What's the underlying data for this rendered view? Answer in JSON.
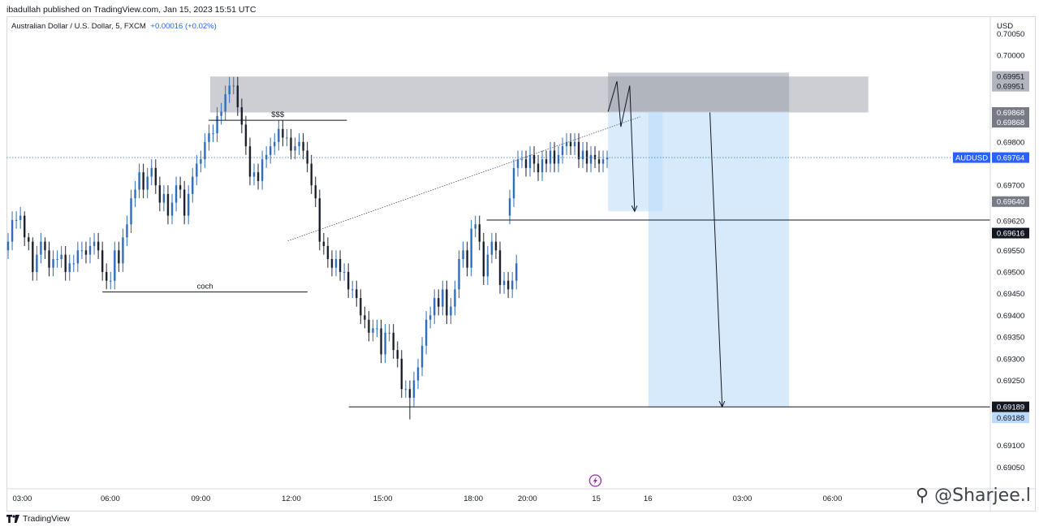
{
  "header": {
    "publish_line": "ibadullah published on TradingView.com, Jan 15, 2023 15:51 UTC"
  },
  "legend": {
    "symbol_line": "Australian Dollar / U.S. Dollar, 5, FXCM",
    "change": "+0.00016 (+0.02%)"
  },
  "footer": {
    "brand": "TradingView",
    "watermark": "@Sharjee.l"
  },
  "colors": {
    "up_candle": "#2f6dbd",
    "down_candle": "#1e222d",
    "zone_gray": "#b7b9c1",
    "zone_blue": "#bcdcfa",
    "price_line": "#4a86c8",
    "accent": "#2962ff"
  },
  "chart_data": {
    "type": "candlestick",
    "symbol": "AUDUSD",
    "currency": "USD",
    "ylim": [
      0.69,
      0.7009
    ],
    "x_ticks": [
      "03:00",
      "06:00",
      "09:00",
      "12:00",
      "15:00",
      "18:00",
      "20:00",
      "15",
      "16",
      "03:00",
      "06:00"
    ],
    "y_ticks": [
      "0.70050",
      "0.70000",
      "0.69850",
      "0.69800",
      "0.69700",
      "0.69550",
      "0.69500",
      "0.69450",
      "0.69400",
      "0.69350",
      "0.69300",
      "0.69250",
      "0.69100",
      "0.69050"
    ],
    "price_tags": [
      {
        "label": "0.69951",
        "value": 0.69951,
        "style": "gray"
      },
      {
        "label": "0.69951",
        "value": 0.69951,
        "style": "gray"
      },
      {
        "label": "0.69868",
        "value": 0.69868,
        "style": "dark-gray"
      },
      {
        "label": "0.69868",
        "value": 0.69868,
        "style": "dark-gray"
      },
      {
        "label": "0.69764",
        "value": 0.69764,
        "style": "blue",
        "symbol": "AUDUSD"
      },
      {
        "label": "0.69640",
        "value": 0.6964,
        "style": "dark-gray"
      },
      {
        "label": "0.69620",
        "value": 0.6962,
        "style": "light"
      },
      {
        "label": "0.69616",
        "value": 0.69616,
        "style": "black"
      },
      {
        "label": "0.69189",
        "value": 0.69189,
        "style": "black"
      },
      {
        "label": "0.69188",
        "value": 0.69188,
        "style": "light-blue"
      }
    ],
    "annotations": [
      {
        "text": "$$$",
        "type": "horizontal-line",
        "price": 0.6985,
        "x_start": 0.2055,
        "x_end": 0.346
      },
      {
        "text": "coch",
        "type": "horizontal-line",
        "price": 0.69454,
        "x_start": 0.0975,
        "x_end": 0.306
      }
    ],
    "levels": [
      {
        "price": 0.6962,
        "x_start": 0.488,
        "x_end": 1.0
      },
      {
        "price": 0.69189,
        "x_start": 0.348,
        "x_end": 1.0
      }
    ],
    "zones": [
      {
        "kind": "supply",
        "price_top": 0.69951,
        "price_bottom": 0.69868,
        "x_start": 0.207,
        "x_end": 0.876
      },
      {
        "kind": "position",
        "price_top": 0.6996,
        "price_bottom": 0.6987,
        "x_start": 0.6115,
        "x_end": 0.7955
      },
      {
        "kind": "target-1",
        "price_top": 0.69868,
        "price_bottom": 0.6964,
        "x_start": 0.6115,
        "x_end": 0.667
      },
      {
        "kind": "target-2",
        "price_top": 0.69868,
        "price_bottom": 0.69189,
        "x_start": 0.6525,
        "x_end": 0.7955
      }
    ],
    "trendline": {
      "p1": {
        "x": 0.286,
        "price": 0.69572
      },
      "p2": {
        "x": 0.644,
        "price": 0.69858
      }
    },
    "current_price": 0.69764,
    "candle_count": 125,
    "candles": {
      "o": [
        0.6955,
        0.6957,
        0.6962,
        0.6962,
        0.6963,
        0.6958,
        0.6957,
        0.695,
        0.6954,
        0.6957,
        0.6955,
        0.6951,
        0.6953,
        0.6953,
        0.6954,
        0.695,
        0.6952,
        0.6952,
        0.6955,
        0.6955,
        0.6954,
        0.6956,
        0.6957,
        0.6955,
        0.695,
        0.6948,
        0.6948,
        0.6955,
        0.6952,
        0.6958,
        0.6961,
        0.6967,
        0.6969,
        0.6973,
        0.6969,
        0.6972,
        0.6974,
        0.697,
        0.6966,
        0.6968,
        0.6963,
        0.6966,
        0.697,
        0.6969,
        0.6963,
        0.6968,
        0.6972,
        0.6975,
        0.6976,
        0.698,
        0.6982,
        0.6982,
        0.6986,
        0.6987,
        0.6991,
        0.6993,
        0.6993,
        0.6988,
        0.6984,
        0.6979,
        0.6972,
        0.6973,
        0.6971,
        0.6976,
        0.6977,
        0.6979,
        0.698,
        0.6983,
        0.6981,
        0.6981,
        0.6978,
        0.6979,
        0.698,
        0.6978,
        0.6975,
        0.697,
        0.6967,
        0.6957,
        0.6956,
        0.6953,
        0.6951,
        0.6953,
        0.695,
        0.695,
        0.6946,
        0.6946,
        0.6944,
        0.694,
        0.6939,
        0.6936,
        0.6937,
        0.6937,
        0.6931,
        0.6936,
        0.6936,
        0.6932,
        0.693,
        0.6923,
        0.6923,
        0.6921,
        0.6925,
        0.6928,
        0.6933,
        0.6939,
        0.694,
        0.6944,
        0.6942,
        0.6946,
        0.694,
        0.6942,
        0.6946,
        0.6953,
        0.6955,
        0.6951,
        0.696,
        0.6961,
        0.6957,
        0.6949,
        0.6954,
        0.6957,
        0.6955,
        0.6947,
        0.6948,
        0.6946,
        0.6948
      ],
      "c": [
        0.6957,
        0.6962,
        0.6962,
        0.6963,
        0.6958,
        0.6957,
        0.695,
        0.6954,
        0.6957,
        0.6955,
        0.6951,
        0.6953,
        0.6953,
        0.6954,
        0.695,
        0.6952,
        0.6952,
        0.6955,
        0.6955,
        0.6954,
        0.6956,
        0.6957,
        0.6955,
        0.695,
        0.6948,
        0.6948,
        0.6955,
        0.6952,
        0.6958,
        0.6961,
        0.6967,
        0.6969,
        0.6973,
        0.6969,
        0.6972,
        0.6974,
        0.697,
        0.6966,
        0.6968,
        0.6963,
        0.6966,
        0.697,
        0.6969,
        0.6963,
        0.6968,
        0.6972,
        0.6975,
        0.6976,
        0.698,
        0.6982,
        0.6982,
        0.6986,
        0.6987,
        0.6991,
        0.6993,
        0.6993,
        0.6988,
        0.6984,
        0.6979,
        0.6972,
        0.6973,
        0.6971,
        0.6976,
        0.6977,
        0.6979,
        0.698,
        0.6983,
        0.6981,
        0.6981,
        0.6978,
        0.6979,
        0.698,
        0.6978,
        0.6975,
        0.697,
        0.6967,
        0.6957,
        0.6956,
        0.6953,
        0.6951,
        0.6953,
        0.695,
        0.695,
        0.6946,
        0.6946,
        0.6944,
        0.694,
        0.6939,
        0.6936,
        0.6937,
        0.6937,
        0.6931,
        0.6936,
        0.6936,
        0.6932,
        0.693,
        0.6923,
        0.6923,
        0.6921,
        0.6925,
        0.6928,
        0.6933,
        0.6939,
        0.694,
        0.6944,
        0.6942,
        0.6946,
        0.694,
        0.6942,
        0.6946,
        0.6953,
        0.6955,
        0.6951,
        0.696,
        0.6961,
        0.6957,
        0.6949,
        0.6954,
        0.6957,
        0.6955,
        0.6947,
        0.6948,
        0.6946,
        0.6948,
        0.6952
      ],
      "h": [
        0.6959,
        0.6964,
        0.6964,
        0.6965,
        0.6964,
        0.6959,
        0.6958,
        0.6956,
        0.6959,
        0.6958,
        0.6957,
        0.6955,
        0.6955,
        0.6956,
        0.6956,
        0.6954,
        0.6954,
        0.6957,
        0.6957,
        0.6957,
        0.6958,
        0.6959,
        0.6959,
        0.6957,
        0.6952,
        0.695,
        0.6957,
        0.6957,
        0.696,
        0.6963,
        0.6969,
        0.6971,
        0.6975,
        0.6975,
        0.6974,
        0.6976,
        0.6976,
        0.6972,
        0.697,
        0.697,
        0.6968,
        0.6972,
        0.6972,
        0.6971,
        0.697,
        0.6974,
        0.6977,
        0.6978,
        0.6982,
        0.6984,
        0.6984,
        0.6988,
        0.6989,
        0.6993,
        0.6995,
        0.6995,
        0.6995,
        0.699,
        0.6986,
        0.6981,
        0.6975,
        0.6975,
        0.6978,
        0.6979,
        0.6981,
        0.6982,
        0.6985,
        0.6985,
        0.6983,
        0.6983,
        0.6981,
        0.6982,
        0.6982,
        0.698,
        0.6977,
        0.6972,
        0.6969,
        0.6959,
        0.6958,
        0.6955,
        0.6955,
        0.6955,
        0.6952,
        0.6952,
        0.6948,
        0.6948,
        0.6946,
        0.6942,
        0.6941,
        0.6939,
        0.6939,
        0.6939,
        0.6938,
        0.6938,
        0.6938,
        0.6934,
        0.6932,
        0.6925,
        0.6925,
        0.6927,
        0.693,
        0.6935,
        0.6941,
        0.6942,
        0.6946,
        0.6946,
        0.6948,
        0.6948,
        0.6944,
        0.6948,
        0.6955,
        0.6957,
        0.6957,
        0.6962,
        0.6963,
        0.6963,
        0.6959,
        0.6956,
        0.6959,
        0.6959,
        0.6957,
        0.695,
        0.695,
        0.695,
        0.6954
      ],
      "l": [
        0.6953,
        0.6955,
        0.696,
        0.696,
        0.6956,
        0.6955,
        0.6948,
        0.6948,
        0.6952,
        0.6953,
        0.6949,
        0.6949,
        0.6951,
        0.6951,
        0.6948,
        0.6948,
        0.695,
        0.695,
        0.6953,
        0.6952,
        0.6952,
        0.6954,
        0.6953,
        0.6948,
        0.6946,
        0.6946,
        0.6946,
        0.695,
        0.695,
        0.6956,
        0.6959,
        0.6965,
        0.6967,
        0.6967,
        0.6967,
        0.697,
        0.6968,
        0.6964,
        0.6964,
        0.6961,
        0.6961,
        0.6964,
        0.6967,
        0.6961,
        0.6961,
        0.6966,
        0.697,
        0.6973,
        0.6974,
        0.6978,
        0.698,
        0.698,
        0.6984,
        0.6985,
        0.6989,
        0.6991,
        0.6986,
        0.6982,
        0.6977,
        0.697,
        0.697,
        0.6969,
        0.6969,
        0.6974,
        0.6975,
        0.6977,
        0.6978,
        0.6979,
        0.6979,
        0.6976,
        0.6976,
        0.6977,
        0.6976,
        0.6973,
        0.6968,
        0.6965,
        0.6955,
        0.6954,
        0.6951,
        0.6949,
        0.6949,
        0.6948,
        0.6948,
        0.6944,
        0.6944,
        0.6942,
        0.6938,
        0.6937,
        0.6934,
        0.6934,
        0.6935,
        0.6929,
        0.6929,
        0.6934,
        0.693,
        0.6928,
        0.6921,
        0.6921,
        0.6916,
        0.6919,
        0.6923,
        0.6926,
        0.6931,
        0.6937,
        0.6938,
        0.694,
        0.694,
        0.6938,
        0.6938,
        0.694,
        0.6944,
        0.6951,
        0.6949,
        0.6949,
        0.6958,
        0.6955,
        0.6947,
        0.6947,
        0.6952,
        0.6953,
        0.6945,
        0.6945,
        0.6944,
        0.6944,
        0.6946
      ]
    },
    "consolidation_candles": {
      "o": [
        0.6963,
        0.6967,
        0.6974,
        0.6976,
        0.6976,
        0.6974,
        0.6977,
        0.6975,
        0.6973,
        0.6976,
        0.6975,
        0.6978,
        0.6975,
        0.6977,
        0.6979,
        0.698,
        0.6979,
        0.698,
        0.6976,
        0.6978,
        0.6975,
        0.6977,
        0.6976,
        0.6975,
        0.6976
      ],
      "c": [
        0.6967,
        0.6974,
        0.6976,
        0.6976,
        0.6974,
        0.6977,
        0.6975,
        0.6973,
        0.6976,
        0.6975,
        0.6978,
        0.6975,
        0.6977,
        0.6979,
        0.698,
        0.6979,
        0.698,
        0.6976,
        0.6978,
        0.6975,
        0.6977,
        0.6976,
        0.6975,
        0.6976,
        0.69764
      ],
      "h": [
        0.6969,
        0.6976,
        0.6978,
        0.6978,
        0.6978,
        0.6979,
        0.6979,
        0.6977,
        0.6978,
        0.6978,
        0.698,
        0.698,
        0.6979,
        0.6981,
        0.6982,
        0.6982,
        0.6982,
        0.6982,
        0.698,
        0.698,
        0.6979,
        0.6979,
        0.6978,
        0.6978,
        0.6978
      ],
      "l": [
        0.6961,
        0.6965,
        0.6972,
        0.6974,
        0.6972,
        0.6972,
        0.6973,
        0.6971,
        0.6971,
        0.6973,
        0.6973,
        0.6973,
        0.6973,
        0.6975,
        0.6977,
        0.6977,
        0.6977,
        0.6974,
        0.6974,
        0.6973,
        0.6973,
        0.6974,
        0.6973,
        0.6973,
        0.6974
      ]
    }
  }
}
